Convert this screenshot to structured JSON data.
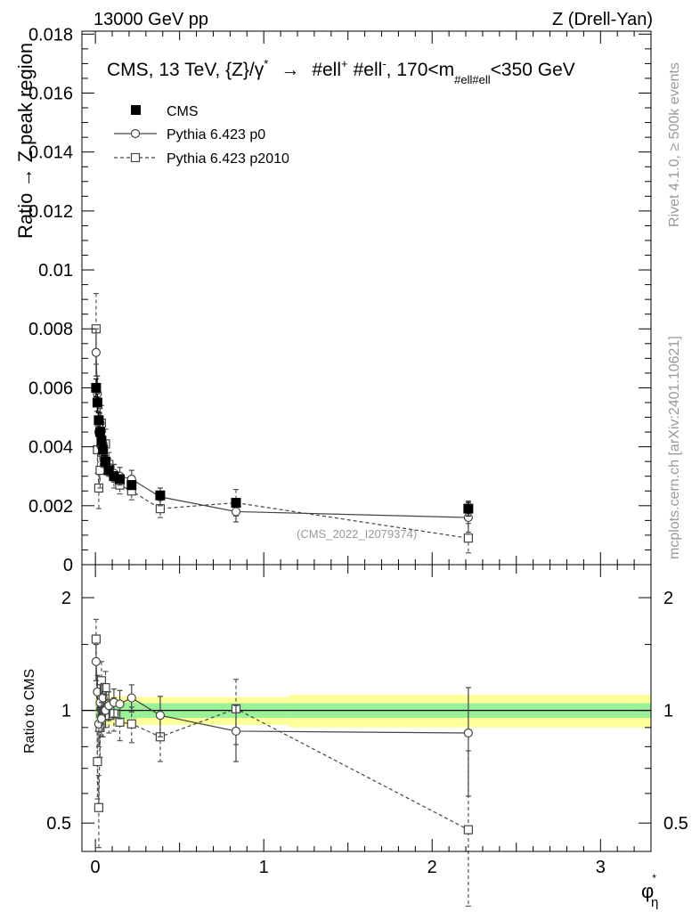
{
  "header": {
    "left": "13000 GeV pp",
    "right": "Z (Drell-Yan)"
  },
  "side_labels": {
    "rivet": "Rivet 4.1.0, ≥ 500k events",
    "mcplots": "mcplots.cern.ch [arXiv:2401.10621]"
  },
  "chart_data": {
    "type": "scatter",
    "title_main": "CMS, 13 TeV, {Z}/γ",
    "title_sup": "*",
    "title_arrow": "→",
    "title_rest": "#ell",
    "title_plus": "+",
    "title_rest2": "#ell",
    "title_minus": "-",
    "title_range": ", 170<m",
    "title_sub": "#ell#ell",
    "title_end": "<350 GeV",
    "annotation": "(CMS_2022_I2079374)",
    "xlabel": "φ",
    "xlabel_sup": "*",
    "xlabel_sub": "η",
    "ylabel_top": "Ratio → Z peak region",
    "ylabel_bottom": "Ratio to CMS",
    "xlim": [
      -0.08,
      3.3
    ],
    "top": {
      "ylim": [
        0,
        0.0181
      ],
      "ytick_values": [
        0,
        0.002,
        0.004,
        0.006,
        0.008,
        0.01,
        0.012,
        0.014,
        0.016,
        0.018
      ],
      "ytick_labels": [
        "0",
        "0.002",
        "0.004",
        "0.006",
        "0.008",
        "0.01",
        "0.012",
        "0.014",
        "0.016",
        "0.018"
      ]
    },
    "bottom": {
      "ylim": [
        0.42,
        2.45
      ],
      "ytick_values": [
        0.5,
        1,
        2
      ],
      "ytick_labels": [
        "0.5",
        "1",
        "2"
      ],
      "band_edges": [
        0,
        0.25,
        1.15,
        3.3
      ],
      "band_green": [
        0.05,
        0.045,
        0.045
      ],
      "band_yellow": [
        0.09,
        0.085,
        0.1
      ]
    },
    "xtick_values": [
      0,
      1,
      2,
      3
    ],
    "xtick_labels": [
      "0",
      "1",
      "2",
      "3"
    ],
    "legend": [
      "CMS",
      "Pythia 6.423 p0",
      "Pythia 6.423 p2010"
    ],
    "x": [
      0.004,
      0.012,
      0.02,
      0.028,
      0.036,
      0.045,
      0.06,
      0.08,
      0.11,
      0.145,
      0.215,
      0.385,
      0.835,
      2.215
    ],
    "series": [
      {
        "name": "CMS",
        "values": [
          0.006,
          0.0055,
          0.0049,
          0.0045,
          0.0042,
          0.0039,
          0.0035,
          0.0032,
          0.003,
          0.0029,
          0.0027,
          0.00235,
          0.0021,
          0.0019
        ],
        "errors": [
          0.0003,
          0.0003,
          0.00025,
          0.00025,
          0.0002,
          0.0002,
          0.0002,
          0.00015,
          0.00015,
          0.00015,
          0.00015,
          0.00012,
          0.00012,
          0.00025
        ]
      },
      {
        "name": "Pythia 6.423 p0",
        "values": [
          0.0072,
          0.0058,
          0.0045,
          0.0048,
          0.004,
          0.0041,
          0.0035,
          0.0033,
          0.0031,
          0.003,
          0.0029,
          0.0023,
          0.0018,
          0.0016
        ],
        "errors": [
          0.0008,
          0.0006,
          0.0005,
          0.0005,
          0.0004,
          0.0004,
          0.0004,
          0.0003,
          0.0003,
          0.0003,
          0.0003,
          0.0003,
          0.00035,
          0.0005
        ],
        "ratio": [
          1.35,
          1.12,
          0.92,
          1.05,
          0.95,
          1.08,
          1.0,
          1.03,
          1.05,
          1.04,
          1.08,
          0.97,
          0.88,
          0.87
        ],
        "ratio_err": [
          0.15,
          0.12,
          0.12,
          0.12,
          0.1,
          0.1,
          0.1,
          0.09,
          0.09,
          0.09,
          0.09,
          0.12,
          0.15,
          0.28
        ]
      },
      {
        "name": "Pythia 6.423 p2010",
        "values": [
          0.008,
          0.0039,
          0.0026,
          0.0032,
          0.0048,
          0.0038,
          0.0041,
          0.0034,
          0.003,
          0.0027,
          0.0025,
          0.0019,
          0.0021,
          0.0009
        ],
        "errors": [
          0.0012,
          0.0008,
          0.0007,
          0.0006,
          0.0006,
          0.0005,
          0.0005,
          0.0004,
          0.0004,
          0.0003,
          0.0003,
          0.0003,
          0.00045,
          0.0005
        ],
        "ratio": [
          1.55,
          0.73,
          0.55,
          0.9,
          1.2,
          0.97,
          1.15,
          0.97,
          0.98,
          0.93,
          0.92,
          0.85,
          1.01,
          0.48
        ],
        "ratio_err": [
          0.2,
          0.15,
          0.12,
          0.15,
          0.15,
          0.12,
          0.12,
          0.1,
          0.1,
          0.1,
          0.1,
          0.12,
          0.2,
          0.3
        ]
      }
    ]
  }
}
